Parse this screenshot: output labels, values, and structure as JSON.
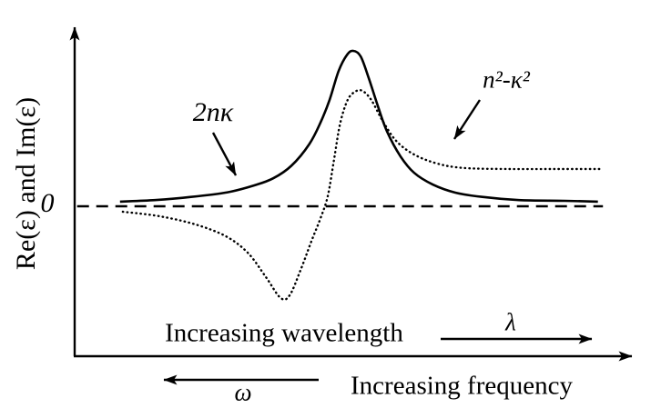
{
  "figure": {
    "background_color": "#ffffff",
    "ink_color": "#000000"
  },
  "axes": {
    "y_axis_label": "Re(ε) and Im(ε)",
    "zero_label": "0"
  },
  "annotations": {
    "solid_curve_label": "2nκ",
    "dotted_curve_label": "n²-κ²",
    "wavelength_text": "Increasing wavelength",
    "wavelength_symbol": "λ",
    "frequency_text": "Increasing frequency",
    "frequency_symbol": "ω"
  },
  "chart_data": {
    "type": "line",
    "title": "",
    "xlabel": "Increasing wavelength (λ →) / Increasing frequency (← ω)",
    "ylabel": "Re(ε) and Im(ε)",
    "x_axis": {
      "units": "arbitrary, 0–100 across axis; wavelength increases to the right, frequency increases to the left",
      "range": [
        0,
        100
      ],
      "ticks": []
    },
    "y_axis": {
      "units": "ε (arbitrary; normalized so Im(ε) resonance peak = 1.0)",
      "range": [
        -0.97,
        1.18
      ],
      "zero_line": 0,
      "ticks": [
        0
      ]
    },
    "grid": false,
    "legend_position": "inline arrow annotations",
    "series": [
      {
        "name": "2nκ",
        "meaning": "Im(ε), absorption (Lorentzian peak)",
        "style": "solid",
        "points": [
          [
            8.2,
            0.03
          ],
          [
            14.4,
            0.04
          ],
          [
            20.8,
            0.06
          ],
          [
            27.3,
            0.09
          ],
          [
            32.1,
            0.135
          ],
          [
            35.4,
            0.18
          ],
          [
            38.6,
            0.26
          ],
          [
            41.8,
            0.4
          ],
          [
            43.8,
            0.54
          ],
          [
            45.4,
            0.685
          ],
          [
            47.0,
            0.87
          ],
          [
            48.5,
            0.975
          ],
          [
            49.6,
            1.0
          ],
          [
            50.9,
            0.965
          ],
          [
            52.3,
            0.83
          ],
          [
            54.0,
            0.64
          ],
          [
            55.6,
            0.48
          ],
          [
            58.0,
            0.32
          ],
          [
            60.4,
            0.215
          ],
          [
            63.7,
            0.14
          ],
          [
            67.7,
            0.088
          ],
          [
            72.5,
            0.06
          ],
          [
            79.0,
            0.04
          ],
          [
            87.1,
            0.035
          ],
          [
            93.0,
            0.03
          ]
        ]
      },
      {
        "name": "n²-κ²",
        "meaning": "Re(ε), anomalous dispersion",
        "style": "dotted",
        "points": [
          [
            8.7,
            -0.035
          ],
          [
            15.2,
            -0.064
          ],
          [
            21.6,
            -0.117
          ],
          [
            27.0,
            -0.193
          ],
          [
            30.9,
            -0.3
          ],
          [
            34.1,
            -0.456
          ],
          [
            36.7,
            -0.59
          ],
          [
            38.3,
            -0.573
          ],
          [
            40.2,
            -0.415
          ],
          [
            42.2,
            -0.222
          ],
          [
            43.8,
            -0.076
          ],
          [
            45.1,
            0.07
          ],
          [
            46.2,
            0.304
          ],
          [
            47.3,
            0.538
          ],
          [
            48.6,
            0.684
          ],
          [
            49.9,
            0.737
          ],
          [
            51.2,
            0.743
          ],
          [
            52.8,
            0.684
          ],
          [
            54.8,
            0.55
          ],
          [
            57.2,
            0.421
          ],
          [
            60.4,
            0.333
          ],
          [
            64.5,
            0.275
          ],
          [
            69.3,
            0.246
          ],
          [
            77.4,
            0.24
          ],
          [
            85.5,
            0.24
          ],
          [
            93.5,
            0.24
          ]
        ]
      }
    ],
    "zero_dashed_line": {
      "y": 0,
      "x_from": 0.6,
      "x_to": 93.9
    }
  }
}
